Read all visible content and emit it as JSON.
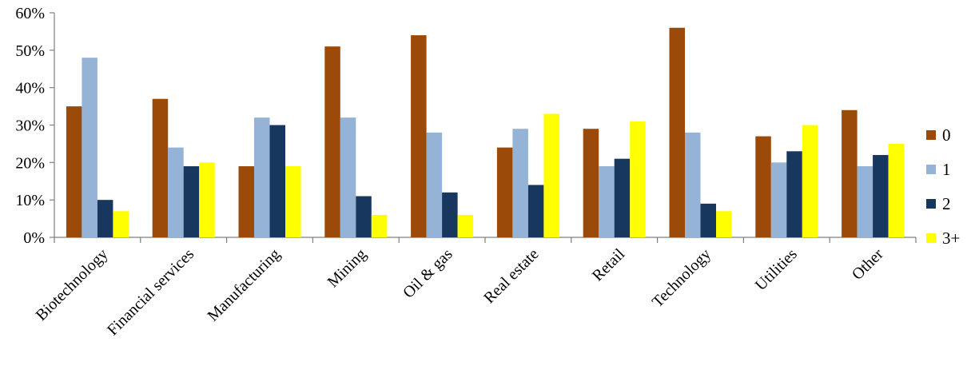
{
  "chart_data": {
    "type": "bar",
    "title": "",
    "xlabel": "",
    "ylabel": "",
    "categories": [
      "Biotechnology",
      "Financial services",
      "Manufacturing",
      "Mining",
      "Oil & gas",
      "Real estate",
      "Retail",
      "Technology",
      "Utilities",
      "Other"
    ],
    "series": [
      {
        "name": "0",
        "color": "#9c4a09",
        "values": [
          35,
          37,
          19,
          51,
          54,
          24,
          29,
          56,
          27,
          34
        ]
      },
      {
        "name": "1",
        "color": "#95b3d7",
        "values": [
          48,
          24,
          32,
          32,
          28,
          29,
          19,
          28,
          20,
          19
        ]
      },
      {
        "name": "2",
        "color": "#17375e",
        "values": [
          10,
          19,
          30,
          11,
          12,
          14,
          21,
          9,
          23,
          22
        ]
      },
      {
        "name": "3+",
        "color": "#ffff00",
        "values": [
          7,
          20,
          19,
          6,
          6,
          33,
          31,
          7,
          30,
          25
        ]
      }
    ],
    "ylim": [
      0,
      60
    ],
    "yticks": [
      0,
      10,
      20,
      30,
      40,
      50,
      60
    ],
    "ytick_labels": [
      "0%",
      "10%",
      "20%",
      "30%",
      "40%",
      "50%",
      "60%"
    ],
    "grid": false,
    "legend_position": "right"
  }
}
